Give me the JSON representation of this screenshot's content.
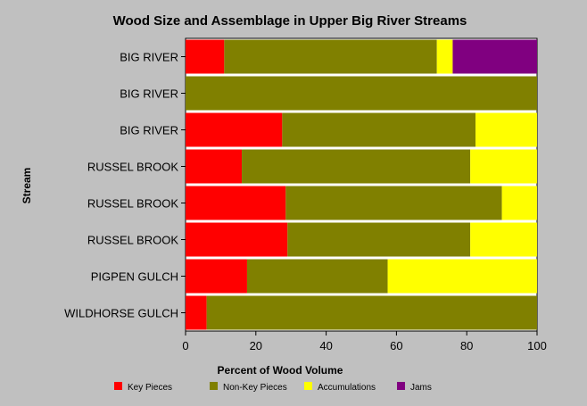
{
  "chart_data": {
    "type": "bar",
    "orientation": "horizontal",
    "stacked": true,
    "title": "Wood Size and Assemblage in Upper Big River Streams",
    "xlabel": "Percent of Wood Volume",
    "ylabel": "Stream",
    "xlim": [
      0,
      100
    ],
    "xticks": [
      0,
      20,
      40,
      60,
      80,
      100
    ],
    "categories": [
      "BIG RIVER",
      "BIG RIVER",
      "BIG RIVER",
      "RUSSEL BROOK",
      "RUSSEL BROOK",
      "RUSSEL BROOK",
      "PIGPEN GULCH",
      "WILDHORSE GULCH"
    ],
    "series": [
      {
        "name": "Key Pieces",
        "color": "#ff0000",
        "values": [
          11,
          0,
          27.5,
          16,
          28.5,
          29,
          17.5,
          6
        ]
      },
      {
        "name": "Non-Key Pieces",
        "color": "#808000",
        "values": [
          60.5,
          100,
          55,
          65,
          61.5,
          52,
          40,
          94
        ]
      },
      {
        "name": "Accumulations",
        "color": "#ffff00",
        "values": [
          4.5,
          0,
          17.5,
          19,
          10,
          19,
          42.5,
          0
        ]
      },
      {
        "name": "Jams",
        "color": "#800080",
        "values": [
          24,
          0,
          0,
          0,
          0,
          0,
          0,
          0
        ]
      }
    ],
    "grid": false,
    "legend_position": "bottom"
  }
}
